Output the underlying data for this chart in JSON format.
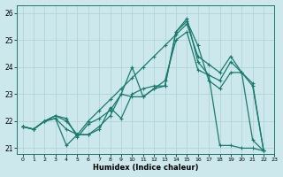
{
  "xlabel": "Humidex (Indice chaleur)",
  "ylabel": "",
  "bg_color": "#cce8ec",
  "line_color": "#1a7a6e",
  "grid_color": "#b0d4d8",
  "xlim": [
    -0.5,
    23
  ],
  "ylim": [
    20.8,
    26.3
  ],
  "xticks": [
    0,
    1,
    2,
    3,
    4,
    5,
    6,
    7,
    8,
    9,
    10,
    11,
    12,
    13,
    14,
    15,
    16,
    17,
    18,
    19,
    20,
    21,
    22,
    23
  ],
  "yticks": [
    21,
    22,
    23,
    24,
    25,
    26
  ],
  "series": [
    {
      "x": [
        0,
        1,
        2,
        3,
        4,
        5,
        6,
        7,
        8,
        9,
        10,
        11,
        12,
        13,
        14,
        15,
        16,
        17,
        18,
        19,
        20,
        21,
        22
      ],
      "y": [
        21.8,
        21.7,
        22.0,
        22.1,
        21.7,
        21.5,
        21.5,
        21.7,
        22.5,
        22.1,
        23.0,
        23.2,
        23.3,
        23.3,
        25.3,
        25.7,
        24.8,
        23.5,
        23.2,
        23.8,
        23.8,
        21.3,
        20.9
      ]
    },
    {
      "x": [
        0,
        1,
        2,
        3,
        4,
        5,
        6,
        7,
        8,
        9,
        10,
        11,
        12,
        13,
        14,
        15,
        16,
        17,
        18,
        19,
        20,
        21,
        22
      ],
      "y": [
        21.8,
        21.7,
        22.0,
        22.1,
        21.1,
        21.5,
        21.5,
        21.8,
        22.2,
        23.0,
        24.0,
        22.9,
        23.2,
        23.3,
        25.3,
        25.8,
        24.2,
        23.7,
        21.1,
        21.1,
        21.0,
        21.0,
        20.9
      ]
    },
    {
      "x": [
        0,
        1,
        2,
        3,
        4,
        5,
        6,
        7,
        8,
        9,
        10,
        11,
        12,
        13,
        14,
        15,
        16,
        17,
        18,
        19,
        20,
        21,
        22
      ],
      "y": [
        21.8,
        21.7,
        22.0,
        22.2,
        22.1,
        21.4,
        21.9,
        22.1,
        22.4,
        23.0,
        22.9,
        22.9,
        23.2,
        23.5,
        25.0,
        25.3,
        23.9,
        23.7,
        23.5,
        24.2,
        23.8,
        23.3,
        20.9
      ]
    },
    {
      "x": [
        0,
        1,
        2,
        3,
        4,
        5,
        6,
        7,
        8,
        9,
        10,
        11,
        12,
        13,
        14,
        15,
        16,
        17,
        18,
        19,
        20,
        21,
        22
      ],
      "y": [
        21.8,
        21.7,
        22.0,
        22.2,
        22.0,
        21.5,
        22.0,
        22.4,
        22.8,
        23.2,
        23.6,
        24.0,
        24.4,
        24.8,
        25.2,
        25.6,
        24.4,
        24.1,
        23.8,
        24.4,
        23.8,
        23.4,
        20.9
      ]
    }
  ],
  "markersize": 2.5,
  "linewidth": 0.9
}
